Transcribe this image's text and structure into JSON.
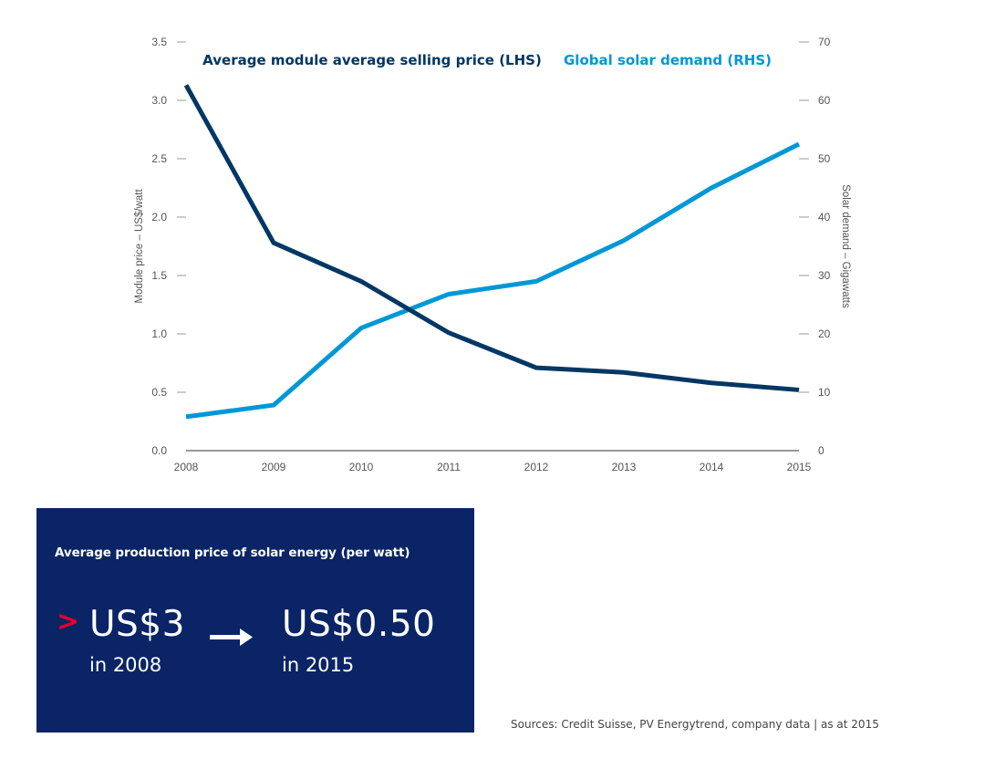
{
  "chart_data": {
    "type": "line",
    "x": [
      "2008",
      "2009",
      "2010",
      "2011",
      "2012",
      "2013",
      "2014",
      "2015"
    ],
    "series": [
      {
        "name": "Average module average selling price (LHS)",
        "axis": "left",
        "color": "#003764",
        "values": [
          3.13,
          1.78,
          1.45,
          1.01,
          0.71,
          0.67,
          0.58,
          0.52
        ]
      },
      {
        "name": "Global solar demand (RHS)",
        "axis": "right",
        "color": "#0097d7",
        "values": [
          5.8,
          7.8,
          21,
          26.8,
          29,
          36,
          45,
          52.5
        ]
      }
    ],
    "y_left": {
      "label": "Module price – US$/watt",
      "ylim": [
        0,
        3.5
      ],
      "ticks": [
        "0.0",
        "0.5",
        "1.0",
        "1.5",
        "2.0",
        "2.5",
        "3.0",
        "3.5"
      ]
    },
    "y_right": {
      "label": "Solar demand – Gigawatts",
      "ylim": [
        0,
        70
      ],
      "ticks": [
        "0",
        "10",
        "20",
        "30",
        "40",
        "50",
        "60",
        "70"
      ]
    },
    "legend_placement": "top",
    "grid": false
  },
  "infobox": {
    "title": "Average production price of solar energy (per watt)",
    "chevron": ">",
    "from_value": "US$3",
    "from_year": "in 2008",
    "to_value": "US$0.50",
    "to_year": "in 2015",
    "background": "#0a2466",
    "accent": "#e4002b",
    "arrow_icon": "right-arrow-icon"
  },
  "source": "Sources: Credit Suisse, PV Energytrend, company data | as at 2015"
}
